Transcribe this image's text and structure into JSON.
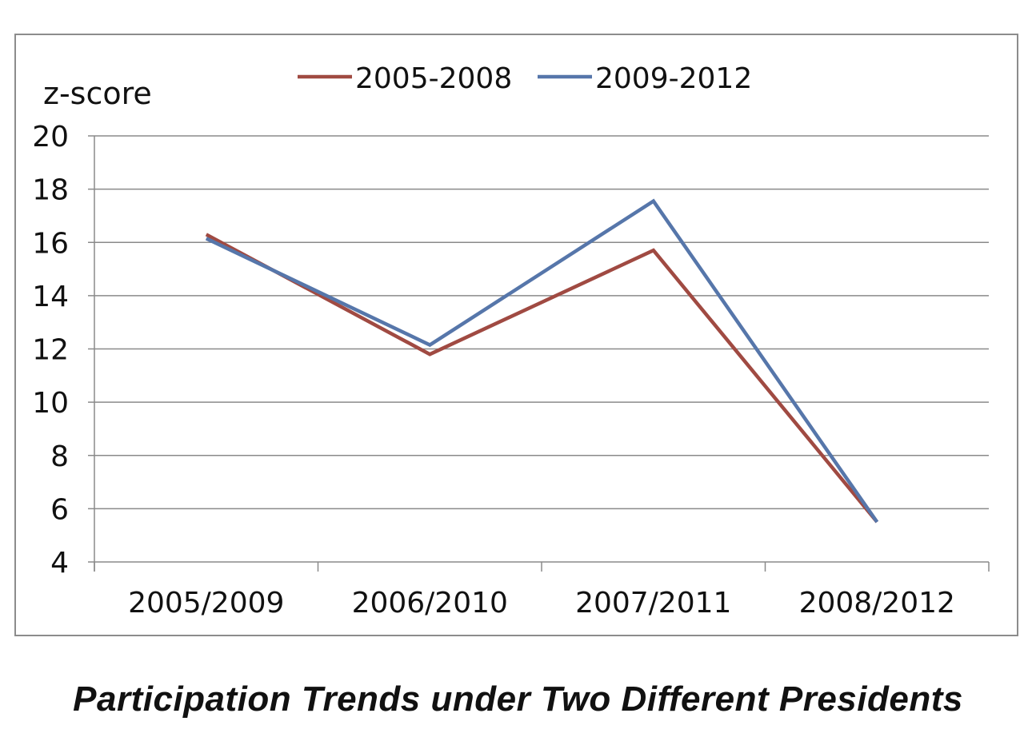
{
  "caption": "Participation Trends under Two Different Presidents",
  "chart_data": {
    "type": "line",
    "title": "",
    "ylabel": "z-score",
    "xlabel": "",
    "categories": [
      "2005/2009",
      "2006/2010",
      "2007/2011",
      "2008/2012"
    ],
    "ylim": [
      4,
      20
    ],
    "yticks": [
      4,
      6,
      8,
      10,
      12,
      14,
      16,
      18,
      20
    ],
    "grid": true,
    "legend": "top-center",
    "series": [
      {
        "name": "2005-2008",
        "color": "#a04a42",
        "values": [
          16.3,
          11.8,
          15.7,
          5.5
        ]
      },
      {
        "name": "2009-2012",
        "color": "#5676aa",
        "values": [
          16.15,
          12.15,
          17.55,
          5.5
        ]
      }
    ]
  }
}
